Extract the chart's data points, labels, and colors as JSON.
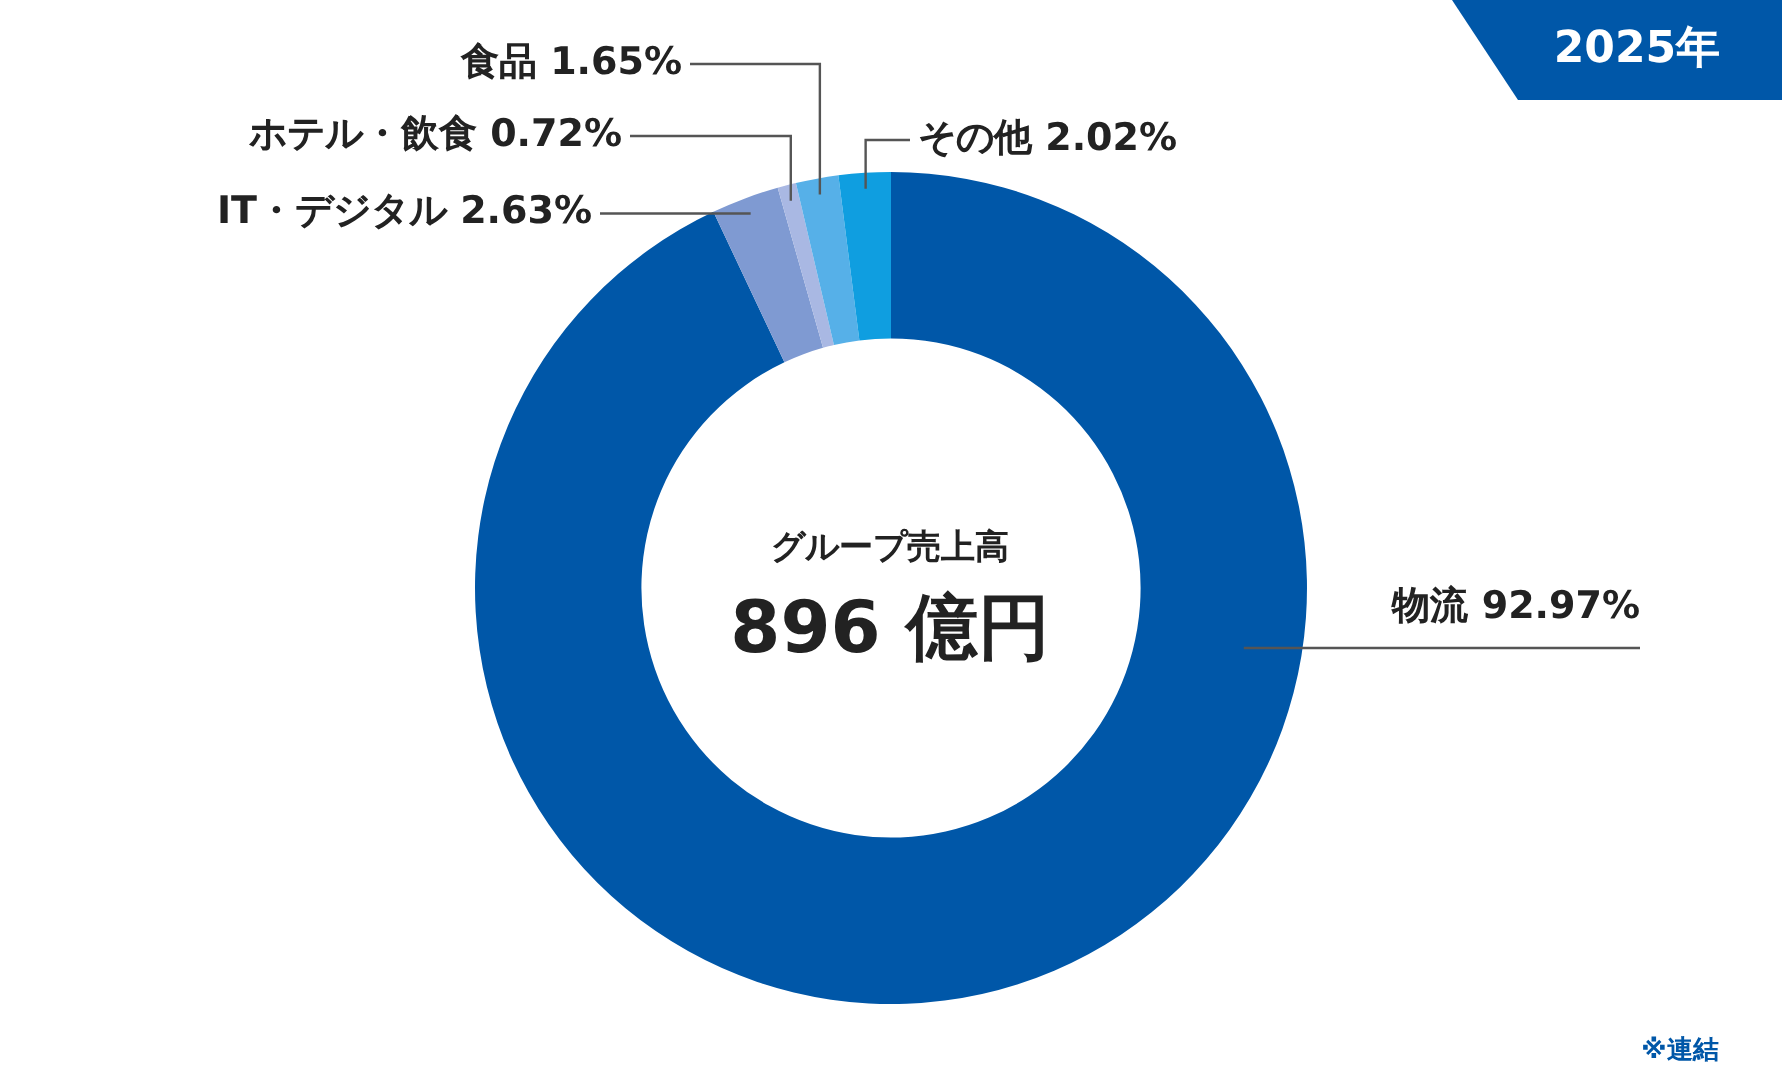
{
  "chart_data": {
    "type": "donut",
    "title": "2025年",
    "categories": [
      "物流",
      "IT・デジタル",
      "ホテル・飲食",
      "食品",
      "その他"
    ],
    "values": [
      92.97,
      2.63,
      0.72,
      1.65,
      2.02
    ],
    "colors": [
      "#0057a8",
      "#7f9ad2",
      "#a9b8e3",
      "#56b0e8",
      "#0f9ee0"
    ],
    "value_labels": [
      "92.97%",
      "2.63%",
      "0.72%",
      "1.65%",
      "2.02%"
    ],
    "legend": false,
    "annotations": [
      "グループ売上高",
      "896 億円",
      "※連結"
    ]
  }
}
